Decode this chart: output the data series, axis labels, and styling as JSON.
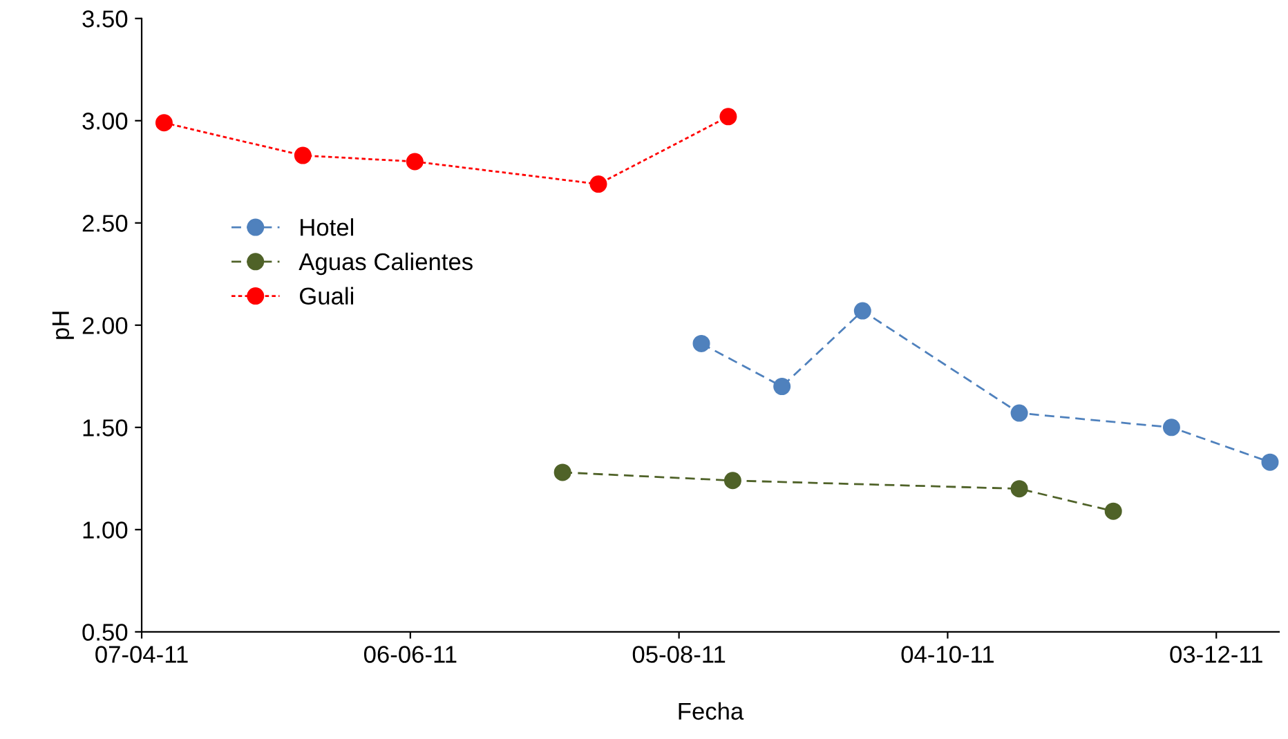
{
  "chart_data": {
    "type": "line",
    "xlabel": "Fecha",
    "ylabel": "pH",
    "xlim": [
      "2011-04-07",
      "2011-12-17"
    ],
    "xticks": [
      {
        "value": "2011-04-07",
        "label": "07-04-11"
      },
      {
        "value": "2011-06-06",
        "label": "06-06-11"
      },
      {
        "value": "2011-08-05",
        "label": "05-08-11"
      },
      {
        "value": "2011-10-04",
        "label": "04-10-11"
      },
      {
        "value": "2011-12-03",
        "label": "03-12-11"
      }
    ],
    "ylim": [
      0.5,
      3.5
    ],
    "yticks": [
      {
        "value": 0.5,
        "label": "0.50"
      },
      {
        "value": 1.0,
        "label": "1.00"
      },
      {
        "value": 1.5,
        "label": "1.50"
      },
      {
        "value": 2.0,
        "label": "2.00"
      },
      {
        "value": 2.5,
        "label": "2.50"
      },
      {
        "value": 3.0,
        "label": "3.00"
      },
      {
        "value": 3.5,
        "label": "3.50"
      }
    ],
    "grid": false,
    "legend": "left",
    "marker": "circle",
    "series": [
      {
        "name": "Hotel",
        "color": "#4f81bd",
        "line_style": "dashed",
        "x": [
          "2011-08-10",
          "2011-08-28",
          "2011-09-15",
          "2011-10-20",
          "2011-11-23",
          "2011-12-15"
        ],
        "values": [
          1.91,
          1.7,
          2.07,
          1.57,
          1.5,
          1.33
        ]
      },
      {
        "name": "Aguas Calientes",
        "color": "#4f6228",
        "line_style": "dashed",
        "x": [
          "2011-07-10",
          "2011-08-17",
          "2011-10-20",
          "2011-11-10"
        ],
        "values": [
          1.28,
          1.24,
          1.2,
          1.09
        ]
      },
      {
        "name": "Guali",
        "color": "#ff0000",
        "line_style": "dotted",
        "x": [
          "2011-04-12",
          "2011-05-13",
          "2011-06-07",
          "2011-07-18",
          "2011-08-16"
        ],
        "values": [
          2.99,
          2.83,
          2.8,
          2.69,
          3.02
        ]
      }
    ]
  }
}
